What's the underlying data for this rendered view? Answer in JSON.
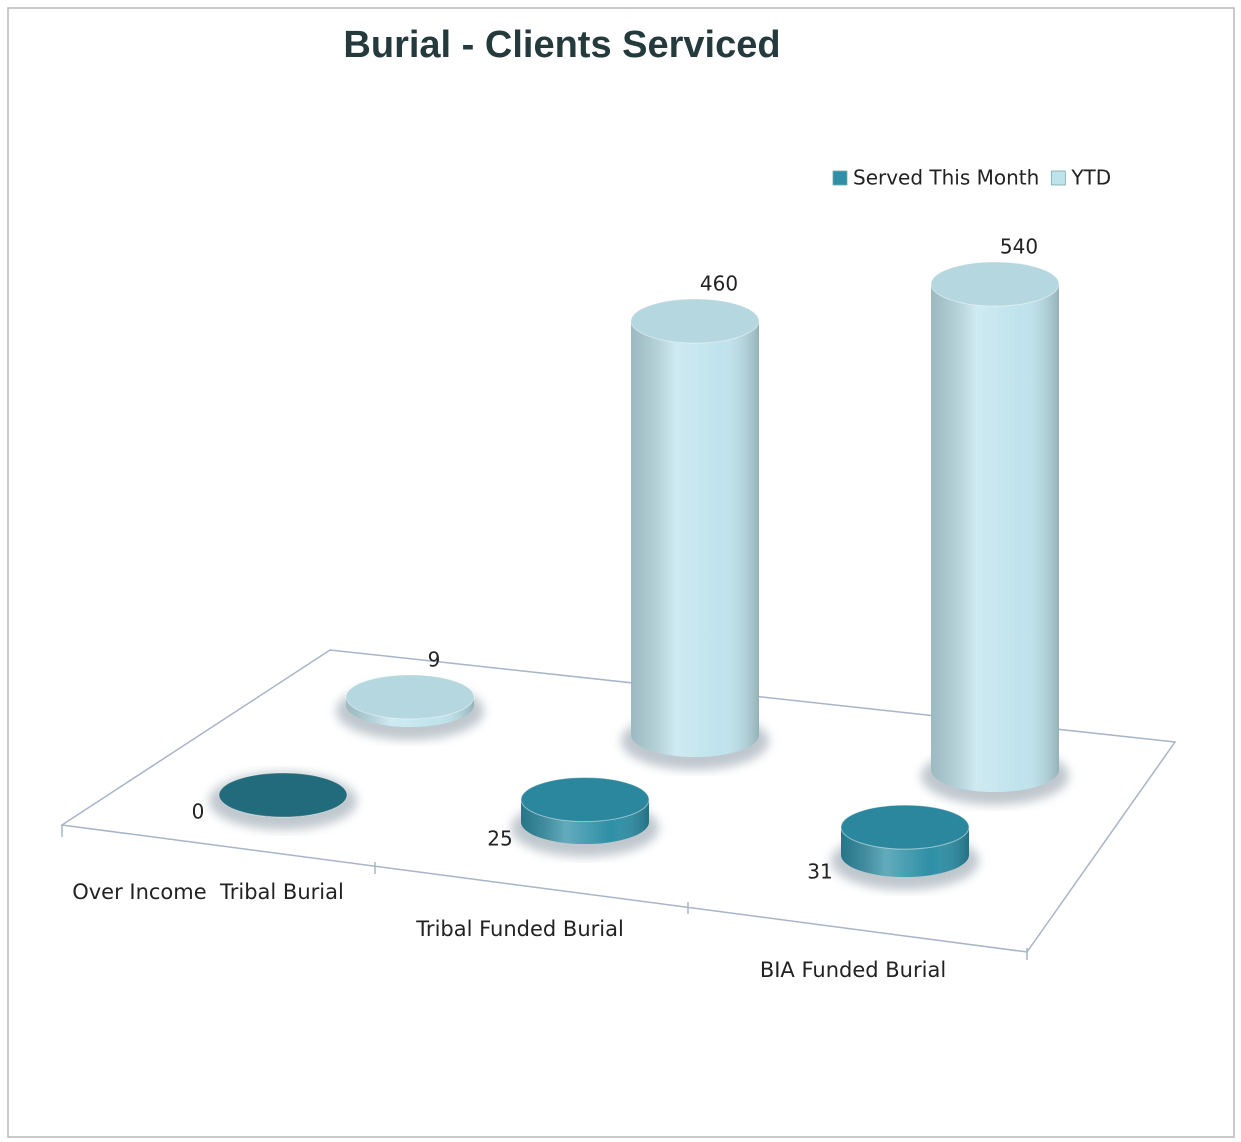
{
  "chart_data": {
    "type": "cylinder",
    "title": "Burial - Clients Serviced",
    "categories": [
      "Over Income  Tribal Burial",
      "Tribal Funded Burial",
      "BIA Funded Burial"
    ],
    "series": [
      {
        "name": "Served This Month",
        "color": "#2e8fa6",
        "values": [
          0,
          25,
          31
        ]
      },
      {
        "name": "YTD",
        "color": "#bfe3ec",
        "values": [
          9,
          460,
          540
        ]
      }
    ],
    "legend": "top-right"
  }
}
